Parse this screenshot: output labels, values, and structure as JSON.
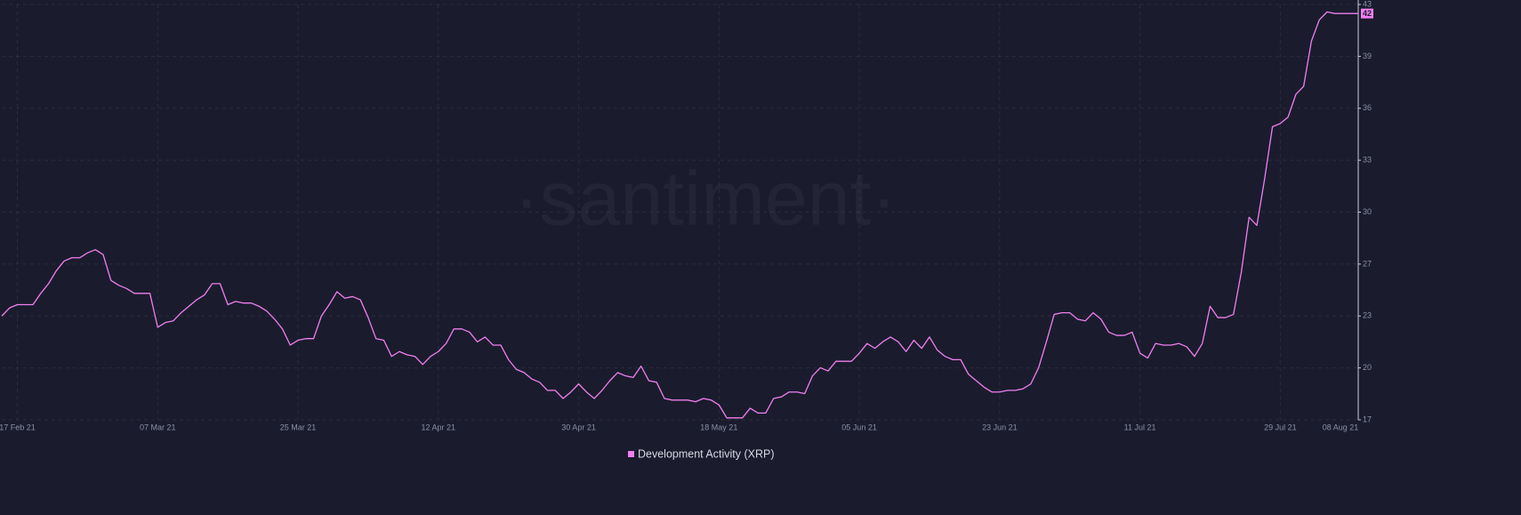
{
  "chart_data": {
    "type": "line",
    "watermark": "·santiment·",
    "categories": [
      null,
      null,
      "17 Feb 21",
      null,
      null,
      null,
      null,
      null,
      null,
      null,
      null,
      null,
      null,
      null,
      null,
      null,
      null,
      null,
      null,
      null,
      "07 Mar 21",
      null,
      null,
      null,
      null,
      null,
      null,
      null,
      null,
      null,
      null,
      null,
      null,
      null,
      null,
      null,
      null,
      null,
      "25 Mar 21",
      null,
      null,
      null,
      null,
      null,
      null,
      null,
      null,
      null,
      null,
      null,
      null,
      null,
      null,
      null,
      null,
      null,
      "12 Apr 21",
      null,
      null,
      null,
      null,
      null,
      null,
      null,
      null,
      null,
      null,
      null,
      null,
      null,
      null,
      null,
      null,
      null,
      "30 Apr 21",
      null,
      null,
      null,
      null,
      null,
      null,
      null,
      null,
      null,
      null,
      null,
      null,
      null,
      null,
      null,
      null,
      null,
      "18 May 21",
      null,
      null,
      null,
      null,
      null,
      null,
      null,
      null,
      null,
      null,
      null,
      null,
      null,
      null,
      null,
      null,
      null,
      "05 Jun 21",
      null,
      null,
      null,
      null,
      null,
      null,
      null,
      null,
      null,
      null,
      null,
      null,
      null,
      null,
      null,
      null,
      null,
      "23 Jun 21",
      null,
      null,
      null,
      null,
      null,
      null,
      null,
      null,
      null,
      null,
      null,
      null,
      null,
      null,
      null,
      null,
      null,
      "11 Jul 21",
      null,
      null,
      null,
      null,
      null,
      null,
      null,
      null,
      null,
      null,
      null,
      null,
      null,
      null,
      null,
      null,
      null,
      "29 Jul 21",
      null,
      null,
      null,
      null,
      null,
      null,
      null,
      null,
      null,
      "08 Aug 21"
    ],
    "series": [
      {
        "name": "Development Activity (XRP)",
        "color": "#f07ff0",
        "values": [
          23.3,
          23.8,
          24.0,
          24.0,
          24.0,
          24.7,
          25.3,
          26.1,
          26.7,
          26.9,
          26.9,
          27.2,
          27.4,
          27.1,
          25.5,
          25.2,
          25.0,
          24.7,
          24.7,
          24.7,
          22.6,
          22.9,
          23.0,
          23.5,
          23.9,
          24.3,
          24.6,
          25.3,
          25.3,
          24.0,
          24.2,
          24.1,
          24.1,
          23.9,
          23.6,
          23.1,
          22.5,
          21.5,
          21.8,
          21.9,
          21.9,
          23.3,
          24.0,
          24.8,
          24.4,
          24.5,
          24.3,
          23.2,
          21.9,
          21.8,
          20.8,
          21.1,
          20.9,
          20.8,
          20.3,
          20.8,
          21.1,
          21.6,
          22.5,
          22.5,
          22.3,
          21.7,
          22.0,
          21.5,
          21.5,
          20.6,
          20.0,
          19.8,
          19.4,
          19.2,
          18.7,
          18.7,
          18.2,
          18.6,
          19.1,
          18.6,
          18.2,
          18.7,
          19.3,
          19.8,
          19.6,
          19.5,
          20.2,
          19.3,
          19.2,
          18.2,
          18.1,
          18.1,
          18.1,
          18.0,
          18.2,
          18.1,
          17.8,
          17.0,
          17.0,
          17.0,
          17.6,
          17.3,
          17.3,
          18.2,
          18.3,
          18.6,
          18.6,
          18.5,
          19.6,
          20.1,
          19.9,
          20.5,
          20.5,
          20.5,
          21.0,
          21.6,
          21.3,
          21.7,
          22.0,
          21.7,
          21.1,
          21.8,
          21.3,
          22.0,
          21.2,
          20.8,
          20.6,
          20.6,
          19.7,
          19.3,
          18.9,
          18.6,
          18.6,
          18.7,
          18.7,
          18.8,
          19.1,
          20.1,
          21.7,
          23.4,
          23.5,
          23.5,
          23.1,
          23.0,
          23.5,
          23.1,
          22.3,
          22.1,
          22.1,
          22.3,
          21.0,
          20.7,
          21.6,
          21.5,
          21.5,
          21.6,
          21.4,
          20.8,
          21.6,
          23.9,
          23.2,
          23.2,
          23.4,
          26.0,
          29.4,
          28.9,
          31.8,
          35.0,
          35.2,
          35.6,
          37.0,
          37.5,
          40.3,
          41.6,
          42.1,
          42.0,
          42.0,
          42.0,
          42
        ]
      }
    ],
    "ylim": [
      16.88,
      42.56
    ],
    "yticks": [
      {
        "value": 16.88,
        "label": "17"
      },
      {
        "value": 20.09,
        "label": "20"
      },
      {
        "value": 23.3,
        "label": "23"
      },
      {
        "value": 26.51,
        "label": "27"
      },
      {
        "value": 29.72,
        "label": "30"
      },
      {
        "value": 32.93,
        "label": "33"
      },
      {
        "value": 36.14,
        "label": "36"
      },
      {
        "value": 39.35,
        "label": "39"
      },
      {
        "value": 42.56,
        "label": "43"
      }
    ],
    "grid": true
  }
}
